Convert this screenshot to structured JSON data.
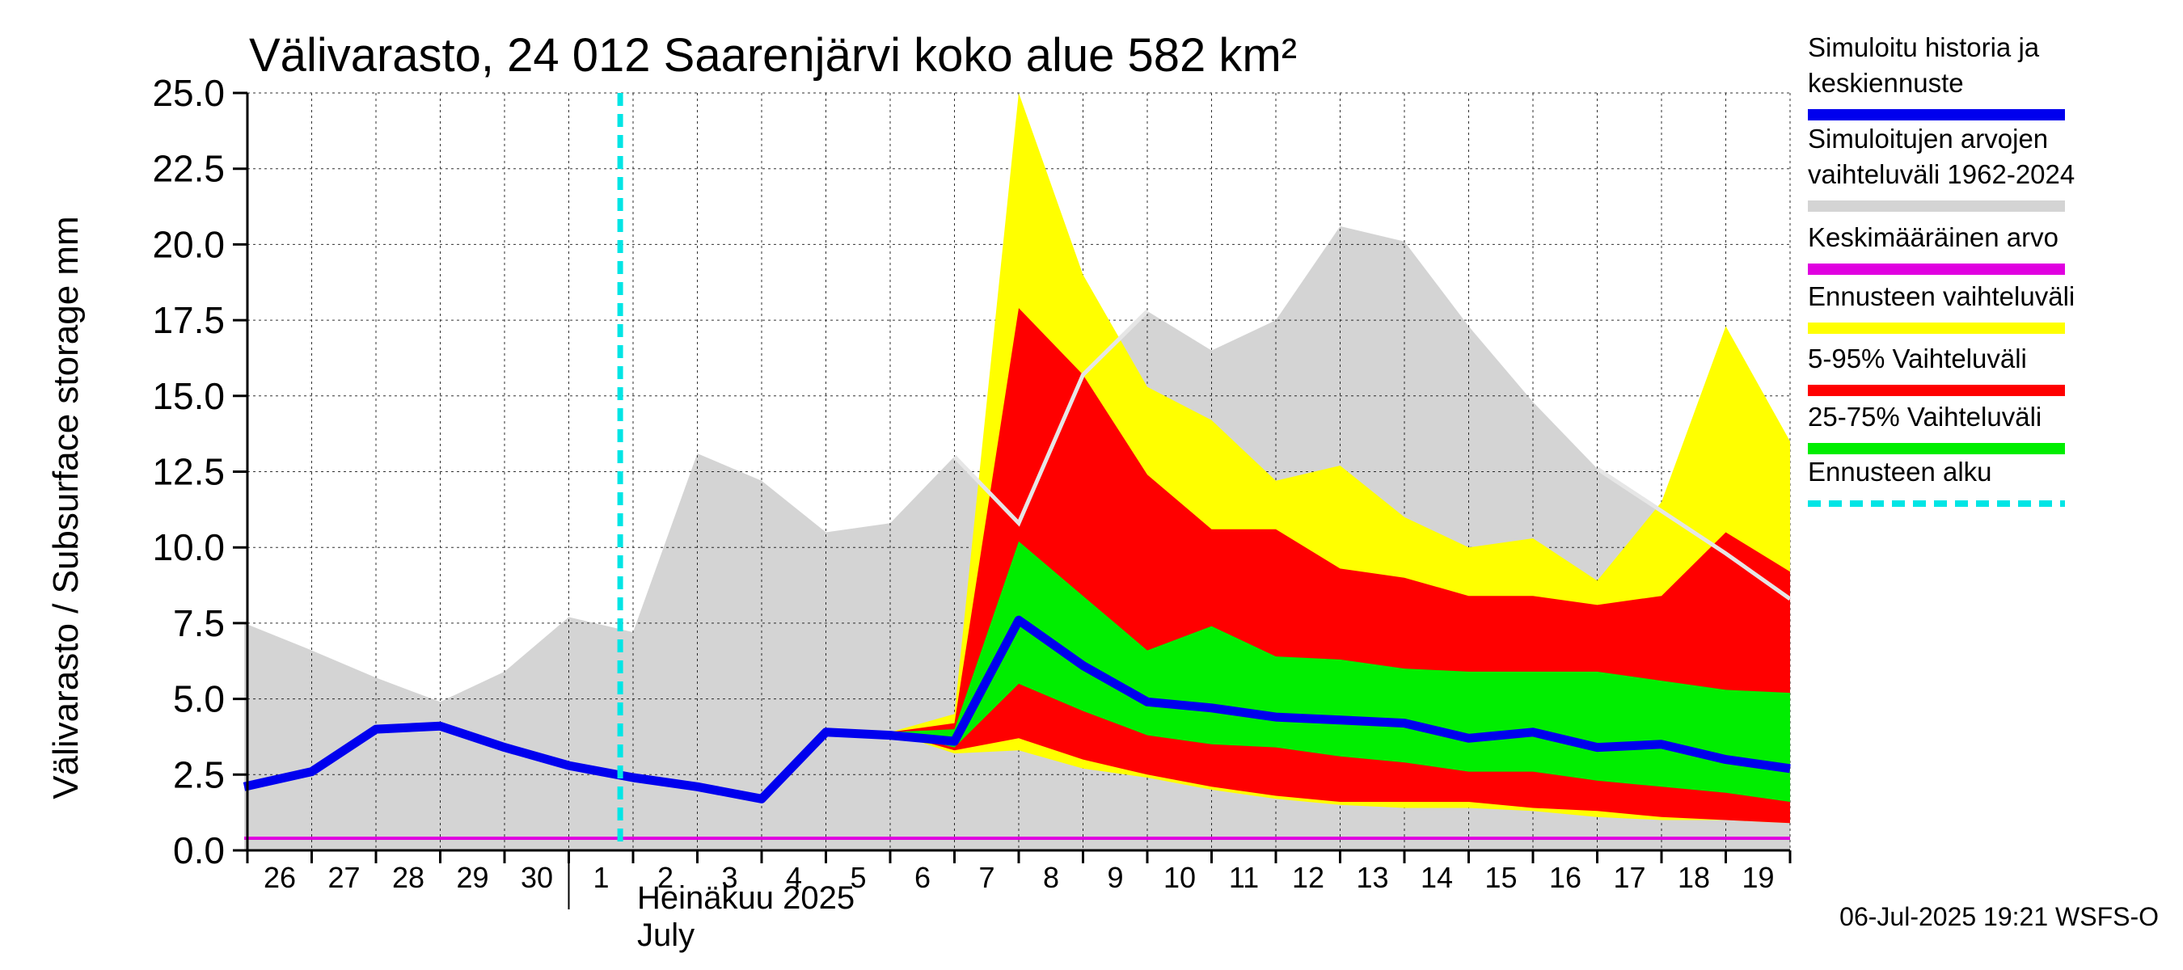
{
  "chart_data": {
    "type": "area",
    "title": "Välivarasto, 24 012 Saarenjärvi koko alue 582 km²",
    "ylabel": "Välivarasto / Subsurface storage  mm",
    "ylim": [
      0,
      25
    ],
    "yticks": [
      "0.0",
      "2.5",
      "5.0",
      "7.5",
      "10.0",
      "12.5",
      "15.0",
      "17.5",
      "20.0",
      "22.5",
      "25.0"
    ],
    "grid": true,
    "x_labels": [
      "26",
      "27",
      "28",
      "29",
      "30",
      "1",
      "2",
      "3",
      "4",
      "5",
      "6",
      "7",
      "8",
      "9",
      "10",
      "11",
      "12",
      "13",
      "14",
      "15",
      "16",
      "17",
      "18",
      "19"
    ],
    "month_label": "Heinäkuu  2025",
    "month_label_en": "July",
    "forecast_start_day": 5.8,
    "historical_range": {
      "name": "Simuloitujen arvojen vaihteluväli 1962-2024",
      "x": [
        -0.05,
        1,
        2,
        3,
        4,
        5,
        6,
        7,
        8,
        9,
        10,
        11,
        12,
        13,
        14,
        15,
        16,
        17,
        18,
        19,
        20,
        21,
        22,
        23,
        24
      ],
      "upper": [
        7.5,
        6.6,
        5.7,
        4.9,
        5.9,
        7.7,
        7.2,
        13.1,
        12.2,
        10.5,
        10.8,
        13.0,
        11.0,
        15.7,
        17.8,
        16.5,
        17.5,
        20.6,
        20.1,
        17.3,
        14.8,
        12.6,
        11.2,
        9.8,
        8.3
      ],
      "lower": [
        0,
        0,
        0,
        0,
        0,
        0,
        0,
        0,
        0,
        0,
        0,
        0,
        0,
        0,
        0,
        0,
        0,
        0,
        0,
        0,
        0,
        0,
        0,
        0,
        0
      ]
    },
    "historical_median_line": {
      "x": [
        11,
        12,
        13,
        14
      ],
      "y": [
        13.0,
        10.8,
        15.7,
        17.8
      ],
      "x2": [
        18,
        19,
        20,
        21,
        22,
        23,
        24
      ],
      "y2": [
        20.6,
        20.1,
        17.3,
        14.8,
        12.6,
        11.2,
        9.8
      ],
      "line_x": [
        11,
        12,
        13,
        14,
        21,
        22,
        23,
        24
      ],
      "line_y": [
        13.0,
        10.8,
        15.7,
        17.8,
        12.6,
        11.2,
        9.8,
        8.3
      ]
    },
    "forecast_x": [
      10,
      11,
      12,
      13,
      14,
      15,
      16,
      17,
      18,
      19,
      20,
      21,
      22,
      23,
      24
    ],
    "ensemble_range": {
      "name": "Ennusteen vaihteluväli",
      "upper": [
        3.9,
        4.5,
        25.0,
        19.0,
        15.3,
        14.2,
        12.2,
        12.7,
        11.0,
        10.0,
        10.3,
        8.9,
        11.5,
        17.3,
        13.5
      ],
      "lower": [
        3.9,
        3.2,
        3.3,
        2.7,
        2.4,
        2.0,
        1.7,
        1.5,
        1.4,
        1.4,
        1.3,
        1.1,
        1.0,
        1.0,
        0.9
      ]
    },
    "p5_95": {
      "name": "5-95% Vaihteluväli",
      "upper": [
        3.9,
        4.2,
        17.9,
        15.7,
        12.4,
        10.6,
        10.6,
        9.3,
        9.0,
        8.4,
        8.4,
        8.1,
        8.4,
        10.5,
        9.2
      ],
      "lower": [
        3.9,
        3.3,
        3.7,
        3.0,
        2.5,
        2.1,
        1.8,
        1.6,
        1.6,
        1.6,
        1.4,
        1.3,
        1.1,
        1.0,
        0.9
      ]
    },
    "p25_75": {
      "name": "25-75% Vaihteluväli",
      "upper": [
        3.9,
        4.0,
        10.2,
        8.4,
        6.6,
        7.4,
        6.4,
        6.3,
        6.0,
        5.9,
        5.9,
        5.9,
        5.6,
        5.3,
        5.2
      ],
      "lower": [
        3.9,
        3.4,
        5.5,
        4.6,
        3.8,
        3.5,
        3.4,
        3.1,
        2.9,
        2.6,
        2.6,
        2.3,
        2.1,
        1.9,
        1.6
      ]
    },
    "simulated": {
      "name": "Simuloitu historia ja keskiennuste",
      "x": [
        -0.05,
        1,
        2,
        3,
        4,
        5,
        6,
        7,
        8,
        9,
        10,
        11,
        12,
        13,
        14,
        15,
        16,
        17,
        18,
        19,
        20,
        21,
        22,
        23,
        24
      ],
      "y": [
        2.1,
        2.6,
        4.0,
        4.1,
        3.4,
        2.8,
        2.4,
        2.1,
        1.7,
        3.9,
        3.8,
        3.6,
        7.6,
        6.1,
        4.9,
        4.7,
        4.4,
        4.3,
        4.2,
        3.7,
        3.9,
        3.4,
        3.5,
        3.0,
        2.7
      ]
    },
    "mean": {
      "name": "Keskimääräinen arvo",
      "x": [
        -0.05,
        24
      ],
      "y": [
        0.4,
        0.4
      ]
    },
    "forecast_start": {
      "name": "Ennusteen alku"
    },
    "legend_placement": "right"
  },
  "legend": [
    {
      "line1": "Simuloitu historia ja",
      "line2": "keskiennuste",
      "color": "#0000ee",
      "style": "solid"
    },
    {
      "line1": "Simuloitujen arvojen",
      "line2": "vaihteluväli 1962-2024",
      "color": "#d4d4d4",
      "style": "solid"
    },
    {
      "line1": "Keskimääräinen arvo",
      "line2": "",
      "color": "#e000e0",
      "style": "solid"
    },
    {
      "line1": "Ennusteen vaihteluväli",
      "line2": "",
      "color": "#ffff00",
      "style": "solid"
    },
    {
      "line1": "5-95% Vaihteluväli",
      "line2": "",
      "color": "#ff0000",
      "style": "solid"
    },
    {
      "line1": "25-75% Vaihteluväli",
      "line2": "",
      "color": "#00ee00",
      "style": "solid"
    },
    {
      "line1": "Ennusteen alku",
      "line2": "",
      "color": "#00e5e5",
      "style": "dashed"
    }
  ],
  "footer": "06-Jul-2025 19:21 WSFS-O"
}
